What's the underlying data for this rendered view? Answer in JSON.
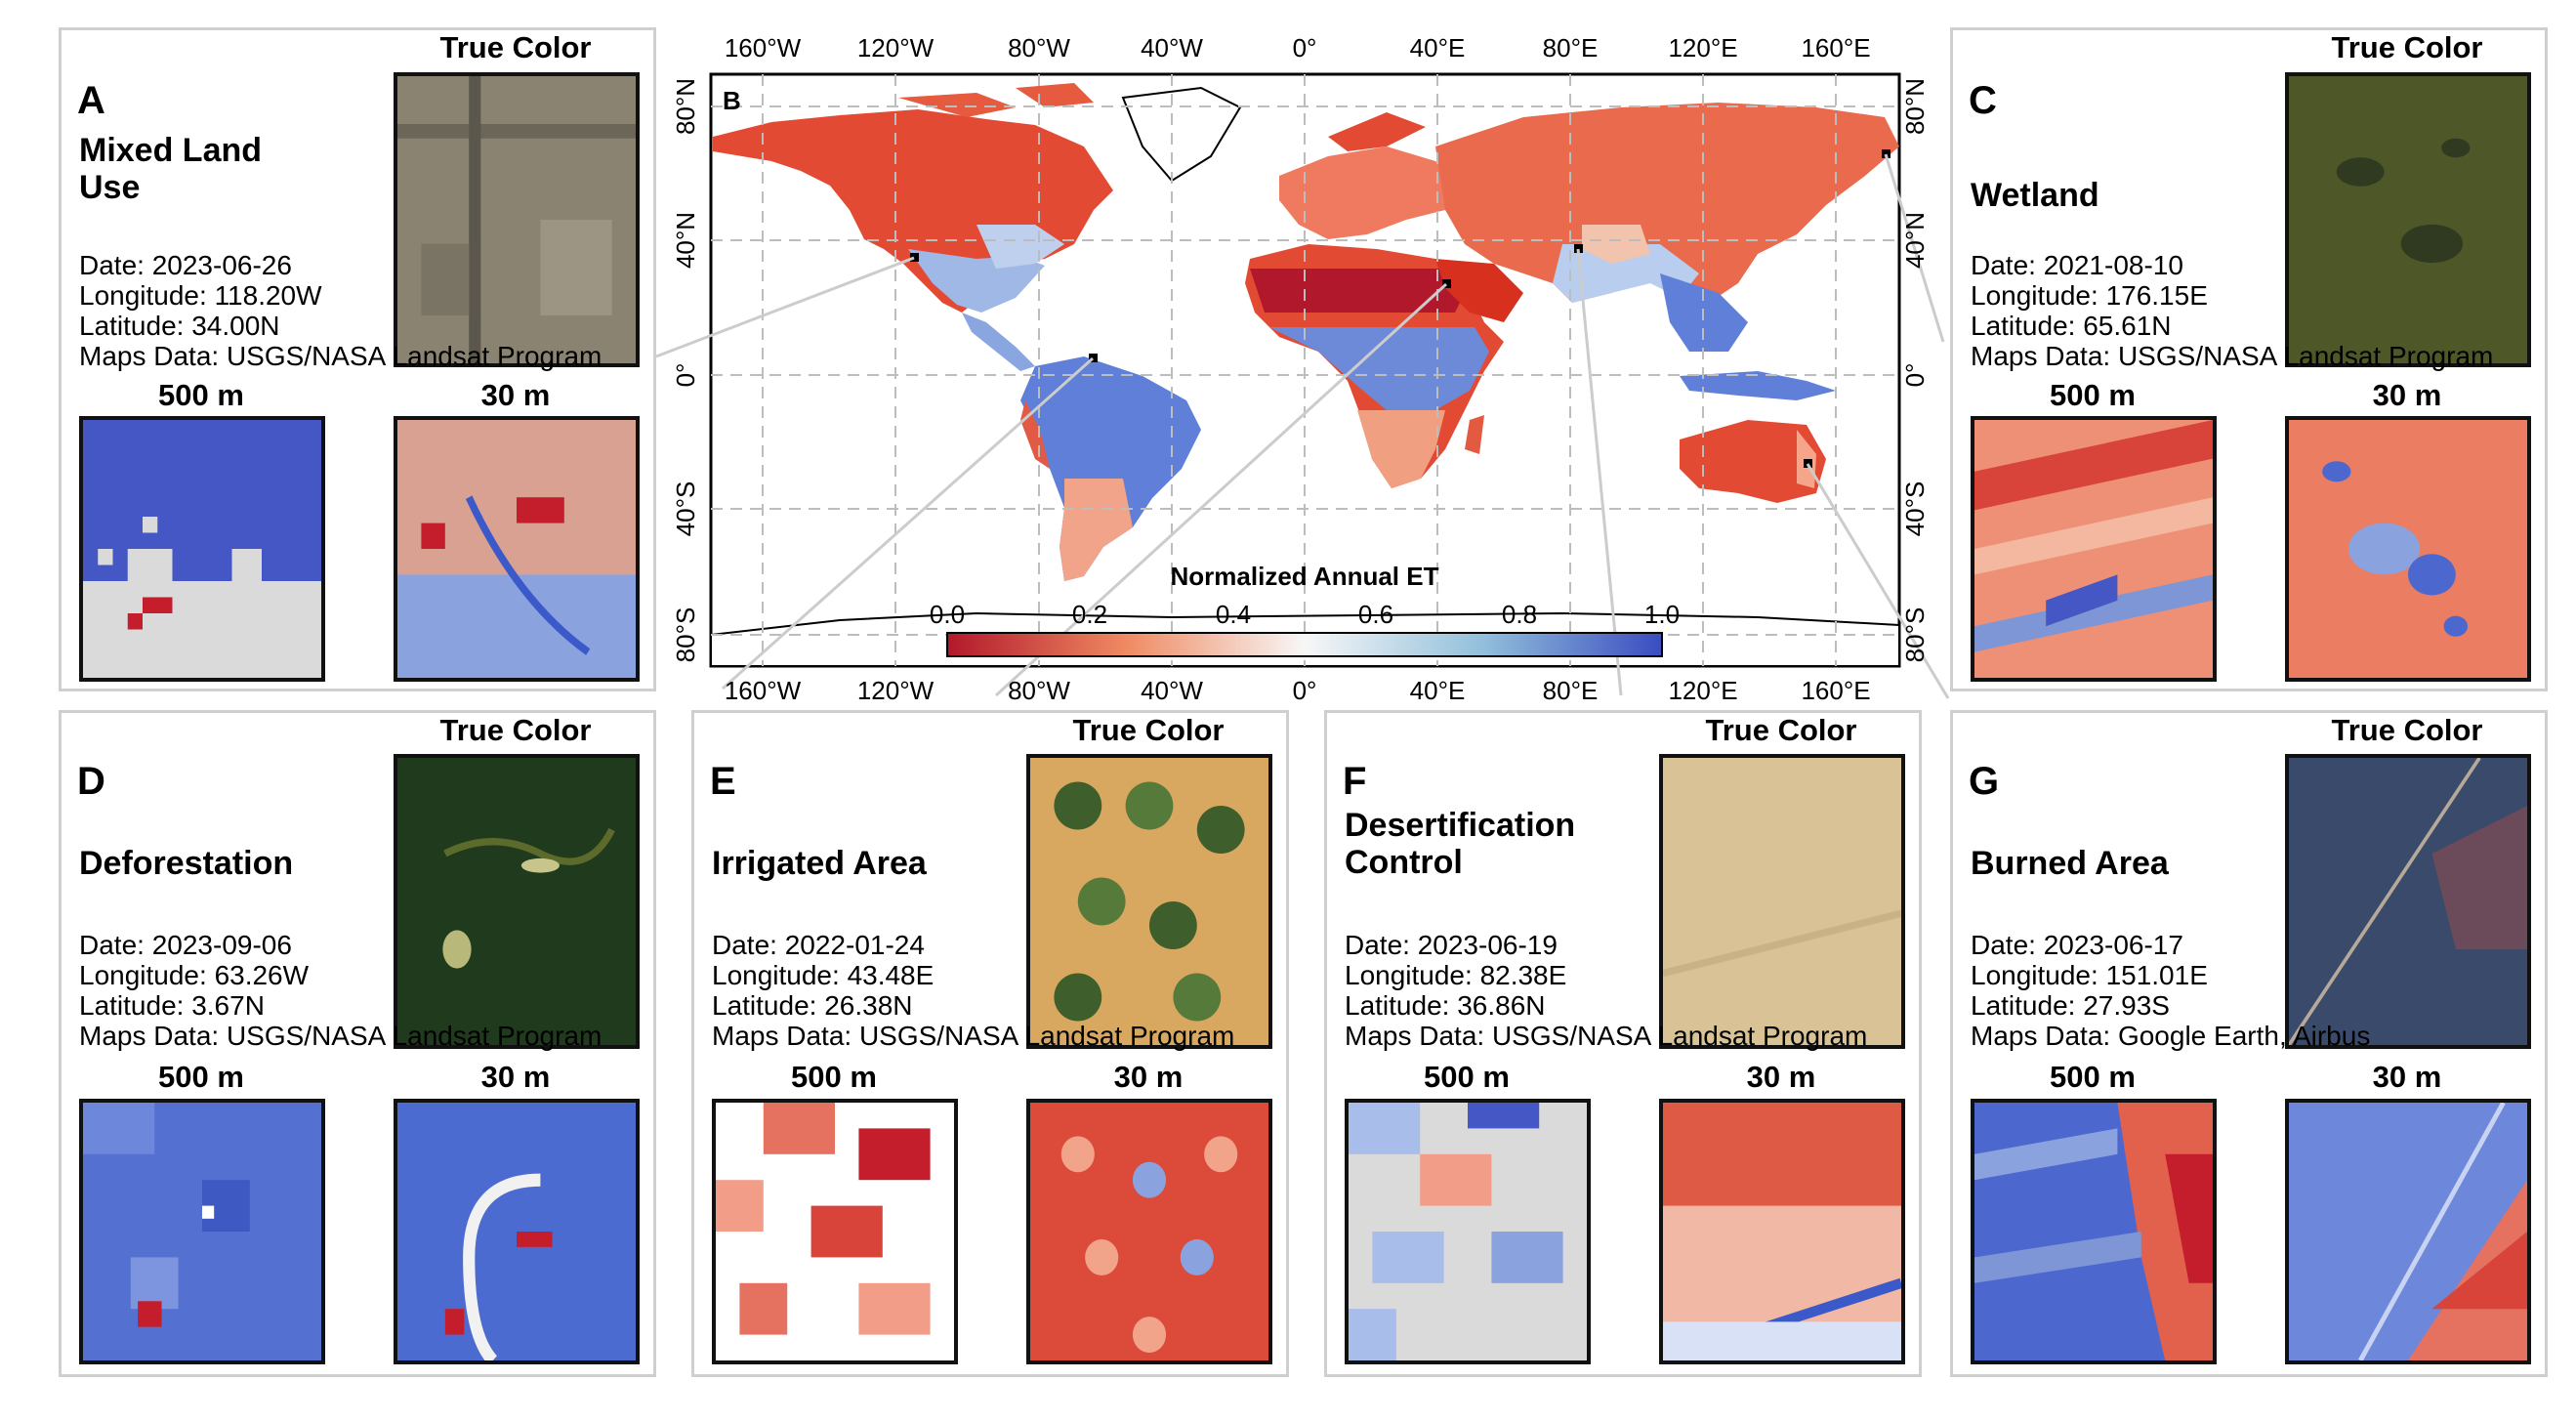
{
  "map": {
    "letter": "B",
    "legend_title": "Normalized Annual ET",
    "colorbar_ticks": [
      "0.0",
      "0.2",
      "0.4",
      "0.6",
      "0.8",
      "1.0"
    ],
    "lon_ticks": [
      "160°W",
      "120°W",
      "80°W",
      "40°W",
      "0°",
      "40°E",
      "80°E",
      "120°E",
      "160°E"
    ],
    "lat_ticks_left": [
      "80°N",
      "40°N",
      "0°",
      "40°S",
      "80°S"
    ],
    "lat_ticks_right": [
      "80°N",
      "40°N",
      "0°",
      "40°S",
      "80°S"
    ],
    "colors": {
      "low": "#b2182b",
      "mid": "#f7f7f7",
      "high": "#3b4cc0"
    }
  },
  "panels": [
    {
      "id": "A",
      "letter": "A",
      "title": "Mixed Land Use",
      "date": "Date: 2023-06-26",
      "lon": "Longitude: 118.20W",
      "lat": "Latitude: 34.00N",
      "credit": "Maps Data: USGS/NASA Landsat Program",
      "true_color": "True Color",
      "res_coarse": "500 m",
      "res_fine": "30 m"
    },
    {
      "id": "C",
      "letter": "C",
      "title": "Wetland",
      "date": "Date: 2021-08-10",
      "lon": "Longitude: 176.15E",
      "lat": "Latitude: 65.61N",
      "credit": "Maps Data: USGS/NASA Landsat Program",
      "true_color": "True Color",
      "res_coarse": "500 m",
      "res_fine": "30 m"
    },
    {
      "id": "D",
      "letter": "D",
      "title": "Deforestation",
      "date": "Date: 2023-09-06",
      "lon": "Longitude: 63.26W",
      "lat": "Latitude: 3.67N",
      "credit": "Maps Data: USGS/NASA Landsat Program",
      "true_color": "True Color",
      "res_coarse": "500 m",
      "res_fine": "30 m"
    },
    {
      "id": "E",
      "letter": "E",
      "title": "Irrigated Area",
      "date": "Date: 2022-01-24",
      "lon": "Longitude: 43.48E",
      "lat": "Latitude: 26.38N",
      "credit": "Maps Data: USGS/NASA Landsat Program",
      "true_color": "True Color",
      "res_coarse": "500 m",
      "res_fine": "30 m"
    },
    {
      "id": "F",
      "letter": "F",
      "title": "Desertification Control",
      "date": "Date: 2023-06-19",
      "lon": "Longitude: 82.38E",
      "lat": "Latitude: 36.86N",
      "credit": "Maps Data: USGS/NASA Landsat Program",
      "true_color": "True Color",
      "res_coarse": "500 m",
      "res_fine": "30 m"
    },
    {
      "id": "G",
      "letter": "G",
      "title": "Burned Area",
      "date": "Date: 2023-06-17",
      "lon": "Longitude: 151.01E",
      "lat": "Latitude: 27.93S",
      "credit": "Maps Data: Google Earth, Airbus",
      "true_color": "True Color",
      "res_coarse": "500 m",
      "res_fine": "30 m"
    }
  ]
}
